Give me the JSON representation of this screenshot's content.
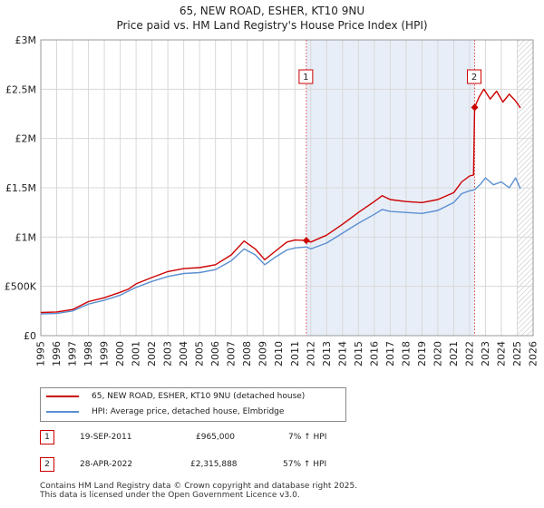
{
  "title_line1": "65, NEW ROAD, ESHER, KT10 9NU",
  "title_line2": "Price paid vs. HM Land Registry's House Price Index (HPI)",
  "legend": {
    "property_label": "65, NEW ROAD, ESHER, KT10 9NU (detached house)",
    "hpi_label": "HPI: Average price, detached house, Elmbridge"
  },
  "transactions": [
    {
      "num": "1",
      "date": "19-SEP-2011",
      "price": "£965,000",
      "hpi": "7% ↑ HPI"
    },
    {
      "num": "2",
      "date": "28-APR-2022",
      "price": "£2,315,888",
      "hpi": "57% ↑ HPI"
    }
  ],
  "footer": {
    "line1": "Contains HM Land Registry data © Crown copyright and database right 2025.",
    "line2": "This data is licensed under the Open Government Licence v3.0."
  },
  "colors": {
    "property": "#cc0000",
    "hpi": "#5b8fd1",
    "shade": "#e8eef8",
    "grid": "#d8d8d8"
  },
  "chart_data": {
    "type": "line",
    "xlim": [
      1995,
      2026
    ],
    "ylim": [
      0,
      3000000
    ],
    "x_ticks": [
      "1995",
      "1996",
      "1997",
      "1998",
      "1999",
      "2000",
      "2001",
      "2002",
      "2003",
      "2004",
      "2005",
      "2006",
      "2007",
      "2008",
      "2009",
      "2010",
      "2011",
      "2012",
      "2013",
      "2014",
      "2015",
      "2016",
      "2017",
      "2018",
      "2019",
      "2020",
      "2021",
      "2022",
      "2023",
      "2024",
      "2025",
      "2026"
    ],
    "y_ticks": [
      {
        "value": 0,
        "label": "£0"
      },
      {
        "value": 500000,
        "label": "£500K"
      },
      {
        "value": 1000000,
        "label": "£1M"
      },
      {
        "value": 1500000,
        "label": "£1.5M"
      },
      {
        "value": 2000000,
        "label": "£2M"
      },
      {
        "value": 2500000,
        "label": "£2.5M"
      },
      {
        "value": 3000000,
        "label": "£3M"
      }
    ],
    "shaded_period": [
      2011.72,
      2022.32
    ],
    "future_hatch_from": 2025.0,
    "markers": [
      {
        "label": "1",
        "x": 2011.72,
        "y": 965000
      },
      {
        "label": "2",
        "x": 2022.32,
        "y": 2315888
      }
    ],
    "series": [
      {
        "name": "65, NEW ROAD, ESHER, KT10 9NU (detached house)",
        "points": [
          [
            1995.0,
            235000
          ],
          [
            1996.0,
            240000
          ],
          [
            1997.0,
            265000
          ],
          [
            1998.0,
            345000
          ],
          [
            1999.0,
            385000
          ],
          [
            2000.0,
            440000
          ],
          [
            2000.5,
            470000
          ],
          [
            2001.0,
            525000
          ],
          [
            2002.0,
            590000
          ],
          [
            2003.0,
            650000
          ],
          [
            2004.0,
            680000
          ],
          [
            2005.0,
            690000
          ],
          [
            2006.0,
            720000
          ],
          [
            2007.0,
            820000
          ],
          [
            2007.8,
            960000
          ],
          [
            2008.5,
            880000
          ],
          [
            2009.1,
            770000
          ],
          [
            2009.8,
            860000
          ],
          [
            2010.5,
            950000
          ],
          [
            2011.0,
            970000
          ],
          [
            2011.72,
            965000
          ],
          [
            2012.0,
            950000
          ],
          [
            2013.0,
            1020000
          ],
          [
            2014.0,
            1130000
          ],
          [
            2015.0,
            1250000
          ],
          [
            2016.0,
            1360000
          ],
          [
            2016.5,
            1420000
          ],
          [
            2017.0,
            1380000
          ],
          [
            2018.0,
            1360000
          ],
          [
            2019.0,
            1350000
          ],
          [
            2020.0,
            1380000
          ],
          [
            2021.0,
            1450000
          ],
          [
            2021.5,
            1560000
          ],
          [
            2022.0,
            1620000
          ],
          [
            2022.25,
            1630000
          ],
          [
            2022.32,
            2315888
          ],
          [
            2022.6,
            2420000
          ],
          [
            2022.9,
            2500000
          ],
          [
            2023.3,
            2400000
          ],
          [
            2023.7,
            2480000
          ],
          [
            2024.1,
            2370000
          ],
          [
            2024.5,
            2450000
          ],
          [
            2024.9,
            2380000
          ],
          [
            2025.2,
            2310000
          ]
        ]
      },
      {
        "name": "HPI: Average price, detached house, Elmbridge",
        "points": [
          [
            1995.0,
            220000
          ],
          [
            1996.0,
            225000
          ],
          [
            1997.0,
            250000
          ],
          [
            1998.0,
            320000
          ],
          [
            1999.0,
            360000
          ],
          [
            2000.0,
            410000
          ],
          [
            2001.0,
            490000
          ],
          [
            2002.0,
            550000
          ],
          [
            2003.0,
            600000
          ],
          [
            2004.0,
            630000
          ],
          [
            2005.0,
            640000
          ],
          [
            2006.0,
            670000
          ],
          [
            2007.0,
            760000
          ],
          [
            2007.8,
            880000
          ],
          [
            2008.5,
            820000
          ],
          [
            2009.1,
            720000
          ],
          [
            2009.8,
            800000
          ],
          [
            2010.5,
            870000
          ],
          [
            2011.0,
            890000
          ],
          [
            2011.72,
            900000
          ],
          [
            2012.0,
            880000
          ],
          [
            2013.0,
            940000
          ],
          [
            2014.0,
            1040000
          ],
          [
            2015.0,
            1140000
          ],
          [
            2016.0,
            1230000
          ],
          [
            2016.5,
            1280000
          ],
          [
            2017.0,
            1260000
          ],
          [
            2018.0,
            1250000
          ],
          [
            2019.0,
            1240000
          ],
          [
            2020.0,
            1270000
          ],
          [
            2021.0,
            1350000
          ],
          [
            2021.5,
            1440000
          ],
          [
            2022.0,
            1470000
          ],
          [
            2022.32,
            1480000
          ],
          [
            2022.7,
            1540000
          ],
          [
            2023.0,
            1600000
          ],
          [
            2023.5,
            1530000
          ],
          [
            2024.0,
            1560000
          ],
          [
            2024.5,
            1500000
          ],
          [
            2024.9,
            1600000
          ],
          [
            2025.2,
            1490000
          ]
        ]
      }
    ]
  }
}
